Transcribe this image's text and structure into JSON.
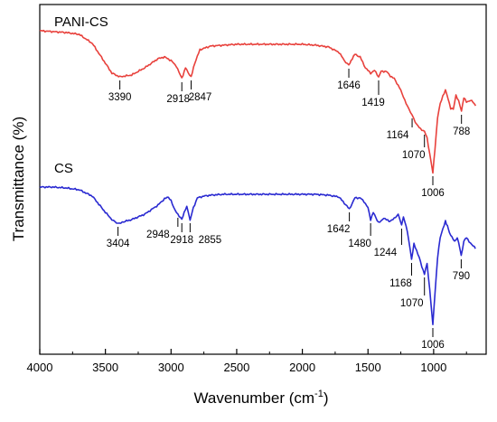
{
  "chart_data": {
    "type": "line",
    "xlabel": "Wavenumber (cm",
    "xlabel_sup": "-1",
    "xlabel_end": ")",
    "ylabel": "Transmittance (%)",
    "xlim": [
      4000,
      600
    ],
    "x_reversed": true,
    "xticks": [
      4000,
      3500,
      3000,
      2500,
      2000,
      1500,
      1000
    ],
    "grid": false,
    "series": [
      {
        "name": "PANI-CS",
        "color": "#e8413c",
        "points": [
          [
            4000,
            29
          ],
          [
            3900,
            30
          ],
          [
            3800,
            31
          ],
          [
            3700,
            33
          ],
          [
            3600,
            43
          ],
          [
            3500,
            65
          ],
          [
            3450,
            76
          ],
          [
            3390,
            80
          ],
          [
            3300,
            78
          ],
          [
            3200,
            70
          ],
          [
            3100,
            60
          ],
          [
            3050,
            58
          ],
          [
            3000,
            62
          ],
          [
            2960,
            68
          ],
          [
            2918,
            82
          ],
          [
            2890,
            70
          ],
          [
            2870,
            75
          ],
          [
            2847,
            80
          ],
          [
            2820,
            65
          ],
          [
            2780,
            50
          ],
          [
            2700,
            46
          ],
          [
            2600,
            45
          ],
          [
            2500,
            44
          ],
          [
            2400,
            44
          ],
          [
            2300,
            44
          ],
          [
            2200,
            44
          ],
          [
            2100,
            44
          ],
          [
            2000,
            44
          ],
          [
            1900,
            45
          ],
          [
            1800,
            47
          ],
          [
            1720,
            53
          ],
          [
            1680,
            62
          ],
          [
            1646,
            67
          ],
          [
            1620,
            60
          ],
          [
            1600,
            55
          ],
          [
            1560,
            58
          ],
          [
            1520,
            70
          ],
          [
            1480,
            76
          ],
          [
            1450,
            73
          ],
          [
            1419,
            80
          ],
          [
            1400,
            74
          ],
          [
            1360,
            74
          ],
          [
            1330,
            79
          ],
          [
            1300,
            82
          ],
          [
            1260,
            92
          ],
          [
            1230,
            102
          ],
          [
            1200,
            113
          ],
          [
            1164,
            122
          ],
          [
            1140,
            130
          ],
          [
            1120,
            134
          ],
          [
            1100,
            138
          ],
          [
            1070,
            140
          ],
          [
            1050,
            148
          ],
          [
            1030,
            165
          ],
          [
            1006,
            186
          ],
          [
            990,
            160
          ],
          [
            970,
            125
          ],
          [
            950,
            110
          ],
          [
            930,
            101
          ],
          [
            910,
            95
          ],
          [
            890,
            104
          ],
          [
            870,
            115
          ],
          [
            850,
            116
          ],
          [
            830,
            100
          ],
          [
            810,
            107
          ],
          [
            788,
            118
          ],
          [
            770,
            103
          ],
          [
            750,
            108
          ],
          [
            720,
            106
          ],
          [
            700,
            108
          ],
          [
            680,
            112
          ]
        ],
        "annotations": [
          {
            "x": 3390,
            "label": "3390"
          },
          {
            "x": 2918,
            "label": "2918"
          },
          {
            "x": 2847,
            "label": "2847"
          },
          {
            "x": 1646,
            "label": "1646"
          },
          {
            "x": 1419,
            "label": "1419"
          },
          {
            "x": 1164,
            "label": "1164"
          },
          {
            "x": 1070,
            "label": "1070"
          },
          {
            "x": 1006,
            "label": "1006"
          },
          {
            "x": 788,
            "label": "788"
          }
        ]
      },
      {
        "name": "CS",
        "color": "#2a2ad1",
        "points": [
          [
            4000,
            202
          ],
          [
            3900,
            202
          ],
          [
            3800,
            203
          ],
          [
            3700,
            205
          ],
          [
            3600,
            212
          ],
          [
            3500,
            230
          ],
          [
            3450,
            238
          ],
          [
            3404,
            242
          ],
          [
            3350,
            240
          ],
          [
            3300,
            238
          ],
          [
            3200,
            232
          ],
          [
            3100,
            222
          ],
          [
            3050,
            215
          ],
          [
            3020,
            213
          ],
          [
            3000,
            217
          ],
          [
            2980,
            225
          ],
          [
            2948,
            232
          ],
          [
            2918,
            238
          ],
          [
            2900,
            230
          ],
          [
            2880,
            224
          ],
          [
            2855,
            238
          ],
          [
            2830,
            225
          ],
          [
            2800,
            214
          ],
          [
            2750,
            212
          ],
          [
            2700,
            211
          ],
          [
            2600,
            210
          ],
          [
            2500,
            210
          ],
          [
            2400,
            210
          ],
          [
            2300,
            210
          ],
          [
            2200,
            210
          ],
          [
            2100,
            210
          ],
          [
            2000,
            210
          ],
          [
            1900,
            210
          ],
          [
            1800,
            211
          ],
          [
            1720,
            213
          ],
          [
            1680,
            220
          ],
          [
            1642,
            226
          ],
          [
            1620,
            220
          ],
          [
            1600,
            214
          ],
          [
            1560,
            214
          ],
          [
            1530,
            218
          ],
          [
            1500,
            225
          ],
          [
            1480,
            238
          ],
          [
            1460,
            230
          ],
          [
            1440,
            236
          ],
          [
            1420,
            241
          ],
          [
            1400,
            240
          ],
          [
            1380,
            236
          ],
          [
            1340,
            240
          ],
          [
            1300,
            237
          ],
          [
            1270,
            232
          ],
          [
            1244,
            244
          ],
          [
            1230,
            235
          ],
          [
            1210,
            245
          ],
          [
            1190,
            260
          ],
          [
            1168,
            282
          ],
          [
            1150,
            265
          ],
          [
            1130,
            272
          ],
          [
            1110,
            280
          ],
          [
            1090,
            290
          ],
          [
            1070,
            298
          ],
          [
            1050,
            287
          ],
          [
            1030,
            315
          ],
          [
            1006,
            354
          ],
          [
            990,
            320
          ],
          [
            970,
            280
          ],
          [
            950,
            258
          ],
          [
            930,
            248
          ],
          [
            910,
            240
          ],
          [
            895,
            245
          ],
          [
            880,
            252
          ],
          [
            860,
            258
          ],
          [
            840,
            262
          ],
          [
            820,
            258
          ],
          [
            800,
            270
          ],
          [
            790,
            278
          ],
          [
            770,
            262
          ],
          [
            750,
            258
          ],
          [
            730,
            262
          ],
          [
            710,
            266
          ],
          [
            690,
            268
          ],
          [
            680,
            270
          ]
        ],
        "annotations": [
          {
            "x": 3404,
            "label": "3404"
          },
          {
            "x": 2948,
            "label": "2948"
          },
          {
            "x": 2918,
            "label": "2918"
          },
          {
            "x": 2855,
            "label": "2855"
          },
          {
            "x": 1642,
            "label": "1642"
          },
          {
            "x": 1480,
            "label": "1480"
          },
          {
            "x": 1244,
            "label": "1244"
          },
          {
            "x": 1168,
            "label": "1168"
          },
          {
            "x": 1070,
            "label": "1070"
          },
          {
            "x": 1006,
            "label": "1006"
          },
          {
            "x": 790,
            "label": "790"
          }
        ]
      }
    ]
  }
}
